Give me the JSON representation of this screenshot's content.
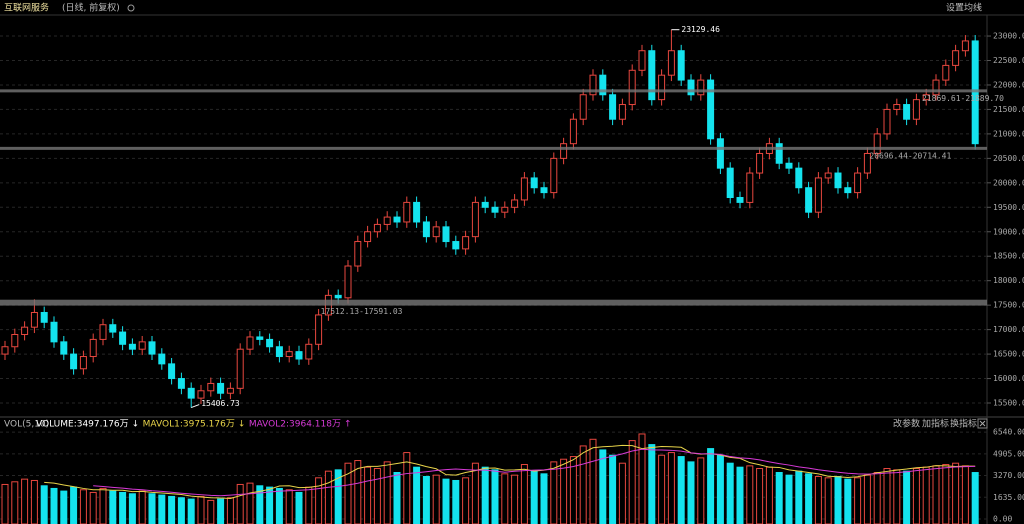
{
  "toolbar": {
    "title": "互联网服务",
    "subtitle": "(日线, 前复权)",
    "settings": "设置均线",
    "indicator_buttons": [
      "改参数",
      "加指标",
      "换指标"
    ]
  },
  "chart_data": [
    {
      "type": "candlestick",
      "up_color": "#e8473f",
      "down_color": "#14e3ee",
      "open": [
        16500,
        16650,
        16900,
        17050,
        17350,
        17150,
        16750,
        16500,
        16200,
        16450,
        16800,
        17100,
        16950,
        16700,
        16600,
        16750,
        16500,
        16300,
        16000,
        15800,
        15600,
        15750,
        15900,
        15700,
        15800,
        16600,
        16850,
        16800,
        16650,
        16450,
        16550,
        16400,
        16700,
        17300,
        17700,
        17650,
        18300,
        18800,
        19000,
        19150,
        19300,
        19200,
        19600,
        19200,
        18900,
        19100,
        18800,
        18650,
        18900,
        19600,
        19500,
        19400,
        19500,
        19650,
        20100,
        19900,
        19800,
        20500,
        20800,
        21300,
        21800,
        22200,
        21800,
        21300,
        21600,
        22300,
        22700,
        21700,
        22200,
        22700,
        22100,
        21800,
        22100,
        20900,
        20300,
        19700,
        19600,
        20200,
        20600,
        20800,
        20400,
        20300,
        19900,
        19400,
        20100,
        20200,
        19900,
        19800,
        20200,
        20600,
        21000,
        21500,
        21600,
        21300,
        21700,
        21800,
        22100,
        22400,
        22700,
        22900
      ],
      "high": [
        16770,
        17020,
        17170,
        17620,
        17470,
        17270,
        16870,
        16620,
        16570,
        16920,
        17220,
        17220,
        17070,
        16820,
        16870,
        16870,
        16620,
        16420,
        16120,
        15920,
        15870,
        16020,
        16020,
        15920,
        16720,
        16970,
        16970,
        16920,
        16770,
        16670,
        16670,
        16820,
        17420,
        17820,
        17820,
        18420,
        18920,
        19120,
        19270,
        19420,
        19420,
        19720,
        19720,
        19320,
        19220,
        19220,
        18920,
        19020,
        19720,
        19720,
        19620,
        19620,
        19770,
        20220,
        20220,
        20020,
        20620,
        20920,
        21420,
        21920,
        22320,
        22320,
        21920,
        21720,
        22420,
        22820,
        22820,
        22320,
        23129.46,
        22820,
        22220,
        22220,
        22220,
        21020,
        20420,
        19820,
        20320,
        20720,
        20920,
        20920,
        20520,
        20420,
        20020,
        20220,
        20320,
        20320,
        20020,
        20320,
        20720,
        21120,
        21620,
        21720,
        21720,
        21820,
        21920,
        22220,
        22520,
        22820,
        23020,
        23020
      ],
      "low": [
        16380,
        16530,
        16780,
        16930,
        17030,
        16630,
        16380,
        16080,
        16080,
        16330,
        16680,
        16830,
        16580,
        16480,
        16480,
        16380,
        16180,
        15880,
        15680,
        15406.73,
        15480,
        15630,
        15580,
        15580,
        15680,
        16480,
        16680,
        16530,
        16330,
        16330,
        16280,
        16280,
        16580,
        17180,
        17530,
        17530,
        18180,
        18680,
        18880,
        19030,
        19080,
        19080,
        19080,
        18780,
        18780,
        18680,
        18530,
        18530,
        18780,
        19380,
        19280,
        19280,
        19380,
        19530,
        19780,
        19680,
        19680,
        20380,
        20680,
        21180,
        21680,
        21680,
        21180,
        21180,
        21480,
        22180,
        21580,
        21580,
        22080,
        21980,
        21680,
        21680,
        20780,
        20180,
        19580,
        19480,
        19480,
        20080,
        20480,
        20280,
        20180,
        19780,
        19280,
        19280,
        19980,
        19780,
        19680,
        19680,
        20080,
        20480,
        20880,
        21380,
        21180,
        21180,
        21580,
        21680,
        21980,
        22280,
        22580,
        20680
      ],
      "close": [
        16650,
        16900,
        17050,
        17350,
        17150,
        16750,
        16500,
        16200,
        16450,
        16800,
        17100,
        16950,
        16700,
        16600,
        16750,
        16500,
        16300,
        16000,
        15800,
        15600,
        15750,
        15900,
        15700,
        15800,
        16600,
        16850,
        16800,
        16650,
        16450,
        16550,
        16400,
        16700,
        17300,
        17700,
        17650,
        18300,
        18800,
        19000,
        19150,
        19300,
        19200,
        19600,
        19200,
        18900,
        19100,
        18800,
        18650,
        18900,
        19600,
        19500,
        19400,
        19500,
        19650,
        20100,
        19900,
        19800,
        20500,
        20800,
        21300,
        21800,
        22200,
        21800,
        21300,
        21600,
        22300,
        22700,
        21700,
        22200,
        22700,
        22100,
        21800,
        22100,
        20900,
        20300,
        19700,
        19600,
        20200,
        20600,
        20800,
        20400,
        20300,
        19900,
        19400,
        20100,
        20200,
        19900,
        19800,
        20200,
        20600,
        21000,
        21500,
        21600,
        21300,
        21700,
        21800,
        22100,
        22400,
        22700,
        22900,
        20800
      ],
      "max_index": 68,
      "min_index": 19,
      "bands": [
        {
          "label": "17512.13-17591.03",
          "low": 17512.13,
          "high": 17591.03
        },
        {
          "label": "20696.44-20714.41",
          "low": 20696.44,
          "high": 20714.41
        },
        {
          "label": "21869.61-21889.70",
          "low": 21869.61,
          "high": 21889.7
        }
      ],
      "ylim": [
        15255,
        23430
      ],
      "yticks": [
        {
          "value": 15500,
          "label": "15500.0"
        },
        {
          "value": 16000,
          "label": "16000.0"
        },
        {
          "value": 16500,
          "label": "16500.0"
        },
        {
          "value": 17000,
          "label": "17000.0"
        },
        {
          "value": 17500,
          "label": "17500.0"
        },
        {
          "value": 18000,
          "label": "18000.0"
        },
        {
          "value": 18500,
          "label": "18500.0"
        },
        {
          "value": 19000,
          "label": "19000.0"
        },
        {
          "value": 19500,
          "label": "19500.0"
        },
        {
          "value": 20000,
          "label": "20000.0"
        },
        {
          "value": 20500,
          "label": "20500.0"
        },
        {
          "value": 21000,
          "label": "21000.0"
        },
        {
          "value": 21500,
          "label": "21500.0"
        },
        {
          "value": 22000,
          "label": "22000.0"
        },
        {
          "value": 22500,
          "label": "22500.0"
        },
        {
          "value": 23000,
          "label": "23000.0"
        }
      ],
      "grid": true
    },
    {
      "type": "bar",
      "title": "VOL(5,10)",
      "series": [
        {
          "name": "VOLUME:3497.176万",
          "arrow": "↓",
          "color": "#ffffff",
          "values": [
            2600,
            2800,
            3000,
            2900,
            2500,
            2300,
            2100,
            2400,
            2200,
            2000,
            2300,
            2100,
            2000,
            1900,
            2100,
            1900,
            1800,
            1700,
            1600,
            1500,
            1700,
            1400,
            1500,
            1600,
            2600,
            2700,
            2500,
            2400,
            2300,
            2200,
            2000,
            2400,
            3100,
            3600,
            3700,
            4200,
            4400,
            3900,
            3800,
            4300,
            3500,
            5000,
            3900,
            3200,
            3300,
            3000,
            2900,
            3100,
            4200,
            3900,
            3700,
            3400,
            3300,
            4100,
            3600,
            3400,
            4300,
            4500,
            4700,
            5500,
            6000,
            5200,
            4800,
            4200,
            5900,
            6400,
            5600,
            4800,
            5000,
            4700,
            4300,
            4600,
            5300,
            4800,
            4200,
            3900,
            4000,
            3800,
            3900,
            3500,
            3300,
            3600,
            3400,
            3200,
            3100,
            3200,
            3000,
            3100,
            3300,
            3500,
            3800,
            3700,
            3600,
            3800,
            3900,
            4000,
            4100,
            4200,
            4000,
            3497.176
          ]
        },
        {
          "name": "MAVOL1:3975.176万",
          "arrow": "↓",
          "color": "#e8d44a",
          "values": [
            null,
            null,
            null,
            null,
            2760,
            2700,
            2560,
            2440,
            2300,
            2200,
            2200,
            2160,
            2160,
            2060,
            2080,
            2000,
            1960,
            1900,
            1840,
            1720,
            1660,
            1600,
            1580,
            1540,
            1760,
            1960,
            2080,
            2240,
            2480,
            2500,
            2360,
            2380,
            2480,
            2720,
            3080,
            3400,
            3800,
            3960,
            3960,
            4060,
            4180,
            4300,
            4140,
            3940,
            3780,
            3340,
            3300,
            3500,
            3640,
            3820,
            3840,
            3680,
            3700,
            3740,
            3600,
            3680,
            3820,
            4120,
            4460,
            4980,
            5360,
            5440,
            5480,
            5540,
            5520,
            5300,
            5380,
            5460,
            5440,
            5400,
            4980,
            4880,
            4920,
            4820,
            4640,
            4560,
            4240,
            4080,
            3900,
            3880,
            3700,
            3600,
            3500,
            3400,
            3220,
            3180,
            3120,
            3180,
            3320,
            3480,
            3580,
            3680,
            3760,
            3860,
            3900,
            4020,
            4000,
            3950,
            3980,
            3975.176
          ]
        },
        {
          "name": "MAVOL2:3964.118万",
          "arrow": "↑",
          "color": "#d63ad6",
          "values": [
            null,
            null,
            null,
            null,
            null,
            null,
            null,
            null,
            null,
            2500,
            2450,
            2380,
            2320,
            2250,
            2200,
            2130,
            2080,
            2010,
            1940,
            1880,
            1830,
            1780,
            1750,
            1800,
            1850,
            1900,
            1960,
            2030,
            2100,
            2130,
            2160,
            2200,
            2290,
            2390,
            2460,
            2560,
            2690,
            2860,
            3000,
            3160,
            3300,
            3420,
            3480,
            3560,
            3650,
            3720,
            3760,
            3720,
            3680,
            3680,
            3600,
            3520,
            3590,
            3640,
            3680,
            3700,
            3740,
            3830,
            3950,
            4140,
            4350,
            4550,
            4730,
            4900,
            5120,
            5250,
            5200,
            5190,
            5170,
            5110,
            4980,
            4910,
            4900,
            4860,
            4700,
            4600,
            4550,
            4450,
            4300,
            4170,
            4060,
            3920,
            3830,
            3710,
            3610,
            3520,
            3440,
            3400,
            3380,
            3410,
            3460,
            3490,
            3560,
            3640,
            3720,
            3790,
            3860,
            3910,
            3940,
            3964.118
          ]
        }
      ],
      "ylim": [
        0,
        7000
      ],
      "yticks": [
        {
          "value": 0,
          "label": "0.00"
        },
        {
          "value": 1635,
          "label": "1635.00"
        },
        {
          "value": 3270,
          "label": "3270.00"
        },
        {
          "value": 4905,
          "label": "4905.00"
        },
        {
          "value": 6540,
          "label": "6540.00"
        }
      ]
    }
  ]
}
